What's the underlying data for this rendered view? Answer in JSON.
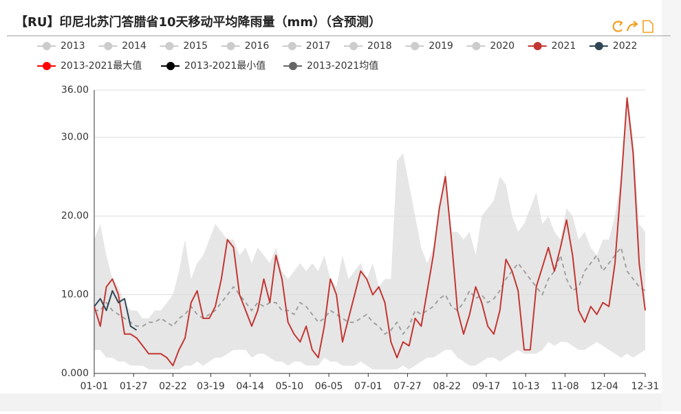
{
  "chart_data": {
    "type": "line",
    "title": "【RU】印尼北苏门答腊省10天移动平均降雨量（mm）（含预测）",
    "inactive_legend": [
      "2013",
      "2014",
      "2015",
      "2016",
      "2017",
      "2018",
      "2019",
      "2020"
    ],
    "inactive_color": "#cccccc",
    "area_color": "#e6e6e6",
    "grid": true,
    "xlim": [
      "01-01",
      "12-31"
    ],
    "xticks": [
      "01-01",
      "01-27",
      "02-22",
      "03-19",
      "04-14",
      "05-10",
      "06-05",
      "07-01",
      "07-27",
      "08-22",
      "09-17",
      "10-13",
      "11-08",
      "12-04",
      "12-31"
    ],
    "ylim": [
      0,
      36
    ],
    "yticks": [
      {
        "value": 0,
        "label": "0.000"
      },
      {
        "value": 10,
        "label": "10.00"
      },
      {
        "value": 20,
        "label": "20.00"
      },
      {
        "value": 30,
        "label": "30.00"
      },
      {
        "value": 36,
        "label": "36.00"
      }
    ],
    "x": [
      "01-01",
      "01-05",
      "01-09",
      "01-13",
      "01-17",
      "01-21",
      "01-25",
      "01-29",
      "02-02",
      "02-06",
      "02-10",
      "02-14",
      "02-18",
      "02-22",
      "02-26",
      "03-02",
      "03-06",
      "03-10",
      "03-14",
      "03-18",
      "03-22",
      "03-26",
      "03-30",
      "04-03",
      "04-07",
      "04-11",
      "04-15",
      "04-19",
      "04-23",
      "04-27",
      "05-01",
      "05-05",
      "05-09",
      "05-13",
      "05-17",
      "05-21",
      "05-25",
      "05-29",
      "06-02",
      "06-06",
      "06-10",
      "06-14",
      "06-18",
      "06-22",
      "06-26",
      "06-30",
      "07-04",
      "07-08",
      "07-12",
      "07-16",
      "07-20",
      "07-24",
      "07-28",
      "08-01",
      "08-05",
      "08-09",
      "08-13",
      "08-17",
      "08-21",
      "08-25",
      "08-29",
      "09-02",
      "09-06",
      "09-10",
      "09-14",
      "09-18",
      "09-22",
      "09-26",
      "09-30",
      "10-04",
      "10-08",
      "10-12",
      "10-16",
      "10-20",
      "10-24",
      "10-28",
      "11-01",
      "11-05",
      "11-09",
      "11-13",
      "11-17",
      "11-21",
      "11-25",
      "11-29",
      "12-03",
      "12-07",
      "12-11",
      "12-15",
      "12-19",
      "12-23",
      "12-27",
      "12-31"
    ],
    "series": [
      {
        "name": "2013-2021最大值",
        "color": "#ff0000",
        "kind": "area-top",
        "values": [
          17,
          19,
          15,
          12,
          11,
          9,
          8,
          8,
          7,
          7,
          8,
          8,
          9,
          10,
          13,
          17,
          12,
          14,
          15,
          17,
          19,
          18,
          17,
          17,
          15,
          16,
          14,
          16,
          15,
          14,
          16,
          13,
          12,
          13,
          14,
          13,
          14,
          13,
          15,
          12,
          11,
          15,
          12,
          13,
          14,
          12,
          14,
          11,
          12,
          12,
          27,
          28,
          24,
          20,
          16,
          14,
          16,
          21,
          26,
          18,
          18,
          17,
          18,
          15,
          20,
          21,
          22,
          25,
          24,
          20,
          18,
          19,
          21,
          23,
          19,
          20,
          18,
          17,
          21,
          20,
          17,
          18,
          16,
          15,
          17,
          17,
          20,
          25,
          35.5,
          30,
          19,
          18
        ]
      },
      {
        "name": "2013-2021最小值",
        "color": "#000000",
        "kind": "area-bottom",
        "values": [
          3,
          3,
          2,
          2,
          1.5,
          1.5,
          1,
          1,
          1,
          0.5,
          0.5,
          0.5,
          0.5,
          0.5,
          0.5,
          1,
          1,
          1.5,
          1,
          1.5,
          2,
          2,
          2.5,
          3,
          3,
          3,
          2,
          2.5,
          2.5,
          2,
          1.5,
          1.5,
          1,
          1.5,
          1.5,
          1,
          1,
          1,
          2,
          1.5,
          1.5,
          1,
          1,
          1,
          1.5,
          1,
          0.5,
          0.5,
          0.5,
          0.5,
          0.5,
          1,
          0.5,
          1,
          1.5,
          2,
          2,
          2.5,
          3,
          3,
          2,
          1.5,
          1,
          1,
          1.5,
          2,
          2,
          1.5,
          2,
          2.5,
          3,
          2.5,
          2.5,
          2.5,
          3,
          4,
          3.5,
          4,
          4,
          3.5,
          3,
          3,
          3.5,
          4,
          3.5,
          3,
          2.5,
          2,
          2.5,
          2,
          2.5,
          3
        ]
      },
      {
        "name": "2013-2021均值",
        "color": "#666666",
        "kind": "dashed",
        "values": [
          8,
          8,
          9,
          8,
          7.5,
          7,
          6.5,
          6,
          6,
          6.5,
          6.5,
          7,
          6.5,
          6,
          7,
          7.5,
          8.5,
          7.5,
          7,
          7.5,
          8,
          9,
          10,
          11,
          10,
          9,
          8,
          9,
          8.5,
          9,
          9,
          8,
          8,
          7.5,
          9,
          8.5,
          7.5,
          6.5,
          7,
          8,
          7.5,
          7,
          6.5,
          6.5,
          7,
          7.5,
          6.5,
          6,
          5,
          5.5,
          6.5,
          5,
          6,
          8,
          7.5,
          8,
          8.5,
          9.5,
          10,
          8.5,
          8,
          9,
          10.5,
          9.5,
          10,
          9,
          9.5,
          10.5,
          12,
          13,
          14,
          13,
          12,
          11,
          10,
          12,
          13,
          15,
          12,
          10.5,
          11,
          13,
          14,
          15,
          13,
          14,
          15,
          16,
          13,
          12,
          11,
          10.5
        ]
      },
      {
        "name": "2021",
        "color": "#c23531",
        "kind": "line",
        "values": [
          8.5,
          6,
          11,
          12,
          10,
          5,
          5,
          4.5,
          3.5,
          2.5,
          2.5,
          2.5,
          2,
          1,
          3,
          4.5,
          9,
          10.5,
          7,
          7,
          8.5,
          12,
          17,
          16,
          10,
          8,
          6,
          8,
          12,
          9,
          15,
          12,
          6.5,
          5,
          4,
          6,
          3,
          2,
          6,
          12,
          10,
          4,
          7,
          10,
          13,
          12,
          10,
          11,
          9,
          4,
          2,
          4,
          3.5,
          7,
          6,
          10.5,
          15,
          21,
          25,
          17,
          8,
          5,
          7.5,
          11,
          9,
          6,
          5,
          8,
          14.5,
          13,
          10.5,
          3,
          3,
          11,
          13.5,
          16,
          13,
          16,
          19.5,
          15,
          8,
          6.5,
          8.5,
          7.5,
          9,
          8.5,
          14,
          24,
          35,
          28,
          14,
          8
        ]
      },
      {
        "name": "2022",
        "color": "#2f4554",
        "kind": "line",
        "x": [
          "01-01",
          "01-05",
          "01-09",
          "01-13",
          "01-17",
          "01-21",
          "01-25",
          "01-29"
        ],
        "values": [
          8.5,
          9.5,
          8,
          10.5,
          9,
          9.5,
          6,
          5.5
        ]
      }
    ]
  }
}
